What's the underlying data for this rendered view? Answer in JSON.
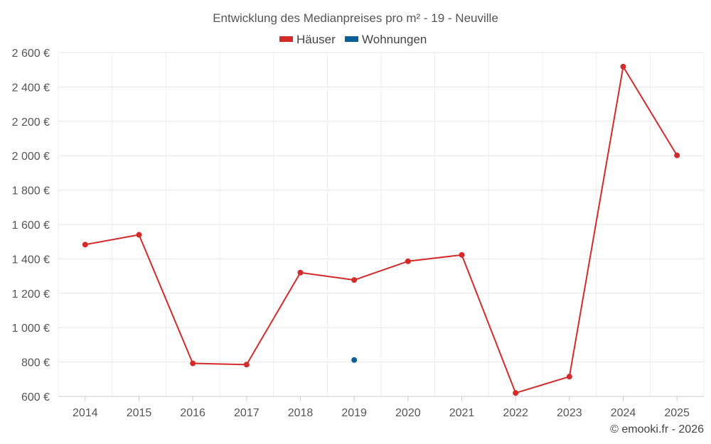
{
  "chart_data": {
    "type": "line",
    "title": "Entwicklung des Medianpreises pro m² - 19 - Neuville",
    "categories": [
      "2014",
      "2015",
      "2016",
      "2017",
      "2018",
      "2019",
      "2020",
      "2021",
      "2022",
      "2023",
      "2024",
      "2025"
    ],
    "series": [
      {
        "name": "Häuser",
        "color": "#d32a2a",
        "values": [
          1483,
          1540,
          792,
          785,
          1320,
          1277,
          1386,
          1423,
          620,
          715,
          2518,
          2002
        ]
      },
      {
        "name": "Wohnungen",
        "color": "#0b5f98",
        "values": [
          null,
          null,
          null,
          null,
          null,
          812,
          null,
          null,
          null,
          null,
          null,
          null
        ]
      }
    ],
    "ylim": [
      600,
      2600
    ],
    "yticks": [
      600,
      800,
      1000,
      1200,
      1400,
      1600,
      1800,
      2000,
      2200,
      2400,
      2600
    ],
    "ytick_labels": [
      "600 €",
      "800 €",
      "1 000 €",
      "1 200 €",
      "1 400 €",
      "1 600 €",
      "1 800 €",
      "2 000 €",
      "2 200 €",
      "2 400 €",
      "2 600 €"
    ],
    "xlabel": "",
    "ylabel": "",
    "grid": true,
    "legend_position": "top-center"
  },
  "credit": "© emooki.fr - 2026"
}
